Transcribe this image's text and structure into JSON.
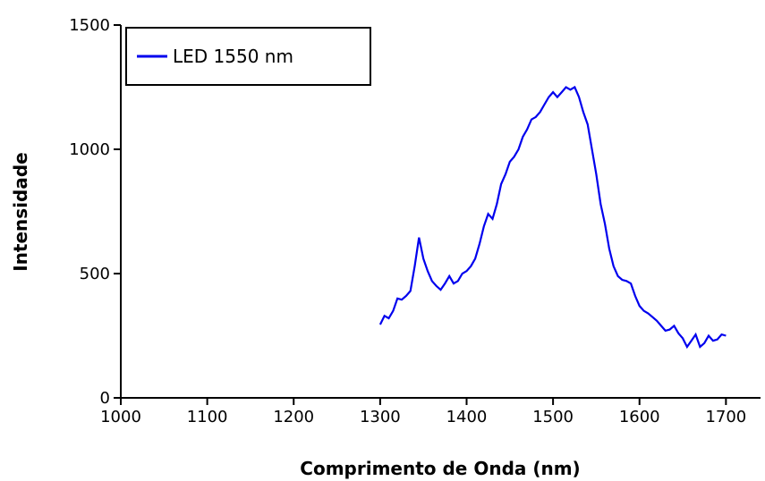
{
  "chart_data": {
    "type": "line",
    "xlabel": "Comprimento de Onda (nm)",
    "ylabel": "Intensidade",
    "xlim": [
      1000,
      1740
    ],
    "ylim": [
      0,
      1500
    ],
    "xticks": [
      1000,
      1100,
      1200,
      1300,
      1400,
      1500,
      1600,
      1700
    ],
    "yticks": [
      0,
      500,
      1000,
      1500
    ],
    "legend": "upper left",
    "x": [
      1300,
      1305,
      1310,
      1315,
      1320,
      1325,
      1330,
      1335,
      1340,
      1345,
      1350,
      1355,
      1360,
      1365,
      1370,
      1375,
      1380,
      1385,
      1390,
      1395,
      1400,
      1405,
      1410,
      1415,
      1420,
      1425,
      1430,
      1435,
      1440,
      1445,
      1450,
      1455,
      1460,
      1465,
      1470,
      1475,
      1480,
      1485,
      1490,
      1495,
      1500,
      1505,
      1510,
      1515,
      1520,
      1525,
      1530,
      1535,
      1540,
      1545,
      1550,
      1555,
      1560,
      1565,
      1570,
      1575,
      1580,
      1585,
      1590,
      1595,
      1600,
      1605,
      1610,
      1615,
      1620,
      1625,
      1630,
      1635,
      1640,
      1645,
      1650,
      1655,
      1660,
      1665,
      1670,
      1675,
      1680,
      1685,
      1690,
      1695,
      1700
    ],
    "series": [
      {
        "name": "LED 1550 nm",
        "color": "#0000ee",
        "values": [
          295,
          330,
          320,
          350,
          400,
          395,
          410,
          430,
          530,
          645,
          560,
          510,
          470,
          450,
          435,
          460,
          490,
          460,
          470,
          500,
          510,
          530,
          560,
          620,
          690,
          740,
          720,
          780,
          860,
          900,
          950,
          970,
          1000,
          1050,
          1080,
          1120,
          1130,
          1150,
          1180,
          1210,
          1230,
          1210,
          1230,
          1250,
          1240,
          1250,
          1210,
          1150,
          1100,
          1000,
          900,
          780,
          700,
          600,
          530,
          490,
          475,
          470,
          460,
          410,
          370,
          350,
          340,
          325,
          310,
          290,
          270,
          275,
          290,
          260,
          240,
          205,
          230,
          255,
          205,
          220,
          250,
          230,
          235,
          255,
          250
        ]
      }
    ]
  }
}
